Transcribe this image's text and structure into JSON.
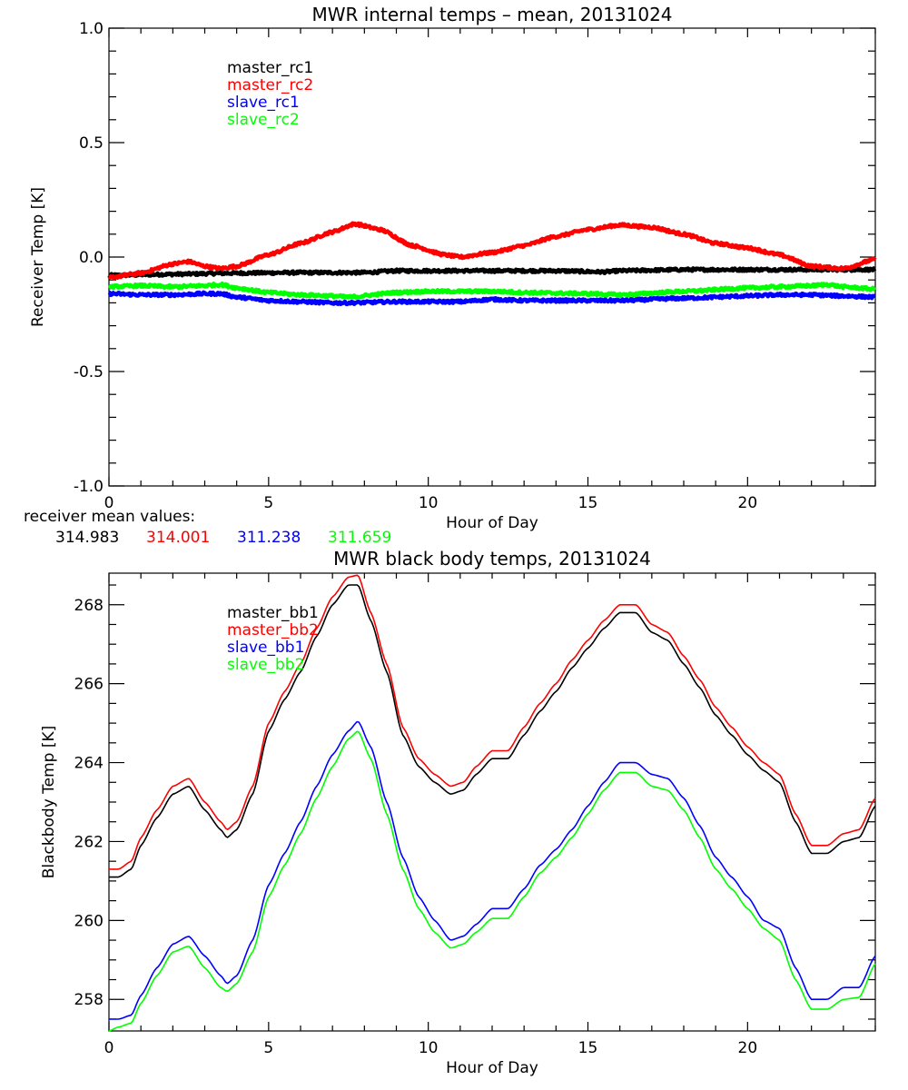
{
  "chart_data": [
    {
      "type": "line",
      "title": "MWR internal temps – mean, 20131024",
      "xlabel": "Hour of Day",
      "ylabel": "Receiver Temp [K]",
      "xlim": [
        0,
        24
      ],
      "ylim": [
        -1.0,
        1.0
      ],
      "xticks": [
        "0",
        "5",
        "10",
        "15",
        "20"
      ],
      "xtick_values": [
        0,
        5,
        10,
        15,
        20
      ],
      "yticks": [
        "-1.0",
        "-0.5",
        "0.0",
        "0.5",
        "1.0"
      ],
      "ytick_values": [
        -1.0,
        -0.5,
        0.0,
        0.5,
        1.0
      ],
      "grid": false,
      "legend_position": "top-left",
      "series": [
        {
          "name": "master_rc1",
          "color": "#000000",
          "x": [
            0,
            2,
            4,
            6,
            8,
            9,
            12,
            14,
            15.5,
            16,
            18,
            20,
            22,
            24
          ],
          "y": [
            -0.08,
            -0.075,
            -0.07,
            -0.068,
            -0.068,
            -0.06,
            -0.06,
            -0.06,
            -0.065,
            -0.06,
            -0.055,
            -0.055,
            -0.055,
            -0.055
          ]
        },
        {
          "name": "master_rc2",
          "color": "#ff0000",
          "x": [
            0,
            1,
            2,
            2.5,
            3,
            3.5,
            4,
            5,
            6,
            7,
            7.7,
            8.5,
            9.5,
            10.5,
            11,
            12,
            13,
            14,
            15,
            16,
            17,
            18,
            19,
            20,
            21,
            22,
            23,
            24
          ],
          "y": [
            -0.09,
            -0.07,
            -0.03,
            -0.02,
            -0.04,
            -0.05,
            -0.04,
            0.01,
            0.06,
            0.11,
            0.145,
            0.12,
            0.05,
            0.01,
            0.0,
            0.02,
            0.05,
            0.09,
            0.12,
            0.14,
            0.13,
            0.1,
            0.06,
            0.04,
            0.01,
            -0.04,
            -0.05,
            -0.01
          ]
        },
        {
          "name": "slave_rc1",
          "color": "#0000ff",
          "x": [
            0,
            1,
            2,
            3,
            3.5,
            4,
            5,
            6,
            7,
            7.5,
            9,
            11,
            12,
            13,
            15,
            16,
            18,
            20,
            21,
            22,
            23,
            24
          ],
          "y": [
            -0.16,
            -0.165,
            -0.165,
            -0.16,
            -0.16,
            -0.175,
            -0.19,
            -0.195,
            -0.2,
            -0.2,
            -0.195,
            -0.195,
            -0.185,
            -0.19,
            -0.19,
            -0.19,
            -0.18,
            -0.17,
            -0.165,
            -0.165,
            -0.17,
            -0.175
          ]
        },
        {
          "name": "slave_rc2",
          "color": "#00ff00",
          "x": [
            0,
            1,
            2,
            3,
            3.5,
            4,
            5,
            6,
            7,
            7.5,
            9,
            10,
            12,
            13,
            15,
            16,
            18,
            20,
            21,
            22,
            22.5,
            23,
            24
          ],
          "y": [
            -0.13,
            -0.125,
            -0.13,
            -0.125,
            -0.12,
            -0.135,
            -0.155,
            -0.165,
            -0.17,
            -0.175,
            -0.155,
            -0.15,
            -0.15,
            -0.155,
            -0.16,
            -0.165,
            -0.15,
            -0.135,
            -0.13,
            -0.125,
            -0.12,
            -0.13,
            -0.14
          ]
        }
      ],
      "annotation": {
        "label": "receiver mean values:",
        "values": [
          {
            "text": "314.983",
            "color": "#000000"
          },
          {
            "text": "314.001",
            "color": "#ff0000"
          },
          {
            "text": "311.238",
            "color": "#0000ff"
          },
          {
            "text": "311.659",
            "color": "#00ff00"
          }
        ]
      }
    },
    {
      "type": "line",
      "title": "MWR black body temps, 20131024",
      "xlabel": "Hour of Day",
      "ylabel": "Blackbody Temp [K]",
      "xlim": [
        0,
        24
      ],
      "ylim": [
        257.2,
        268.8
      ],
      "xticks": [
        "0",
        "5",
        "10",
        "15",
        "20"
      ],
      "xtick_values": [
        0,
        5,
        10,
        15,
        20
      ],
      "yticks": [
        "258",
        "260",
        "262",
        "264",
        "266",
        "268"
      ],
      "ytick_values": [
        258,
        260,
        262,
        264,
        266,
        268
      ],
      "grid": false,
      "legend_position": "top-left",
      "series": [
        {
          "name": "master_bb1",
          "color": "#000000",
          "x": [
            0,
            0.3,
            0.7,
            1,
            1.5,
            2,
            2.5,
            3,
            3.5,
            3.7,
            4,
            4.5,
            5,
            5.5,
            6,
            6.5,
            7,
            7.5,
            7.8,
            8.2,
            8.7,
            9.2,
            9.7,
            10.2,
            10.7,
            11.1,
            11.5,
            12,
            12.5,
            13,
            13.5,
            14,
            14.5,
            15,
            15.5,
            16,
            16.5,
            17,
            17.5,
            18,
            18.5,
            19,
            19.5,
            20,
            20.5,
            21,
            21.5,
            22,
            22.5,
            23,
            23.5,
            24
          ],
          "y": [
            261.1,
            261.1,
            261.3,
            261.9,
            262.6,
            263.2,
            263.4,
            262.8,
            262.3,
            262.1,
            262.3,
            263.2,
            264.8,
            265.6,
            266.3,
            267.2,
            268.0,
            268.5,
            268.5,
            267.6,
            266.3,
            264.7,
            263.9,
            263.5,
            263.2,
            263.3,
            263.7,
            264.1,
            264.1,
            264.7,
            265.3,
            265.8,
            266.4,
            266.9,
            267.4,
            267.8,
            267.8,
            267.3,
            267.1,
            266.5,
            265.9,
            265.2,
            264.7,
            264.2,
            263.8,
            263.5,
            262.5,
            261.7,
            261.7,
            262.0,
            262.1,
            262.9
          ]
        },
        {
          "name": "master_bb2",
          "color": "#ff0000",
          "x": [
            0,
            0.3,
            0.7,
            1,
            1.5,
            2,
            2.5,
            3,
            3.5,
            3.7,
            4,
            4.5,
            5,
            5.5,
            6,
            6.5,
            7,
            7.5,
            7.8,
            8.2,
            8.7,
            9.2,
            9.7,
            10.2,
            10.7,
            11.1,
            11.5,
            12,
            12.5,
            13,
            13.5,
            14,
            14.5,
            15,
            15.5,
            16,
            16.5,
            17,
            17.5,
            18,
            18.5,
            19,
            19.5,
            20,
            20.5,
            21,
            21.5,
            22,
            22.5,
            23,
            23.5,
            24
          ],
          "y": [
            261.3,
            261.3,
            261.5,
            262.1,
            262.8,
            263.4,
            263.6,
            263.0,
            262.5,
            262.3,
            262.5,
            263.4,
            265.0,
            265.8,
            266.5,
            267.4,
            268.2,
            268.7,
            268.75,
            267.8,
            266.5,
            264.9,
            264.1,
            263.7,
            263.4,
            263.5,
            263.9,
            264.3,
            264.3,
            264.9,
            265.5,
            266.0,
            266.6,
            267.1,
            267.6,
            268.0,
            268.0,
            267.5,
            267.3,
            266.7,
            266.1,
            265.4,
            264.9,
            264.4,
            264.0,
            263.7,
            262.7,
            261.9,
            261.9,
            262.2,
            262.3,
            263.1
          ]
        },
        {
          "name": "slave_bb1",
          "color": "#0000ff",
          "x": [
            0,
            0.3,
            0.7,
            1,
            1.5,
            2,
            2.5,
            3,
            3.5,
            3.7,
            4,
            4.5,
            5,
            5.5,
            6,
            6.5,
            7,
            7.5,
            7.8,
            8.2,
            8.7,
            9.2,
            9.7,
            10.2,
            10.7,
            11.1,
            11.5,
            12,
            12.5,
            13,
            13.5,
            14,
            14.5,
            15,
            15.5,
            16,
            16.5,
            17,
            17.5,
            18,
            18.5,
            19,
            19.5,
            20,
            20.5,
            21,
            21.5,
            22,
            22.5,
            23,
            23.5,
            24
          ],
          "y": [
            257.5,
            257.5,
            257.6,
            258.1,
            258.8,
            259.4,
            259.6,
            259.1,
            258.6,
            258.4,
            258.6,
            259.5,
            260.9,
            261.7,
            262.5,
            263.4,
            264.2,
            264.8,
            265.05,
            264.4,
            263.0,
            261.6,
            260.6,
            260.0,
            259.5,
            259.6,
            259.9,
            260.3,
            260.3,
            260.8,
            261.4,
            261.8,
            262.3,
            262.9,
            263.5,
            264.0,
            264.0,
            263.7,
            263.6,
            263.1,
            262.4,
            261.6,
            261.1,
            260.6,
            260.0,
            259.8,
            258.8,
            258.0,
            258.0,
            258.3,
            258.3,
            259.1
          ]
        },
        {
          "name": "slave_bb2",
          "color": "#00ff00",
          "x": [
            0,
            0.3,
            0.7,
            1,
            1.5,
            2,
            2.5,
            3,
            3.5,
            3.7,
            4,
            4.5,
            5,
            5.5,
            6,
            6.5,
            7,
            7.5,
            7.8,
            8.2,
            8.7,
            9.2,
            9.7,
            10.2,
            10.7,
            11.1,
            11.5,
            12,
            12.5,
            13,
            13.5,
            14,
            14.5,
            15,
            15.5,
            16,
            16.5,
            17,
            17.5,
            18,
            18.5,
            19,
            19.5,
            20,
            20.5,
            21,
            21.5,
            22,
            22.5,
            23,
            23.5,
            24
          ],
          "y": [
            257.2,
            257.3,
            257.4,
            257.9,
            258.6,
            259.2,
            259.35,
            258.8,
            258.3,
            258.2,
            258.4,
            259.2,
            260.6,
            261.4,
            262.2,
            263.1,
            263.9,
            264.6,
            264.8,
            264.1,
            262.7,
            261.3,
            260.3,
            259.7,
            259.3,
            259.4,
            259.7,
            260.05,
            260.05,
            260.6,
            261.2,
            261.6,
            262.1,
            262.7,
            263.3,
            263.75,
            263.75,
            263.4,
            263.3,
            262.8,
            262.1,
            261.3,
            260.8,
            260.3,
            259.8,
            259.5,
            258.5,
            257.75,
            257.75,
            258.0,
            258.05,
            258.9
          ]
        }
      ]
    }
  ]
}
